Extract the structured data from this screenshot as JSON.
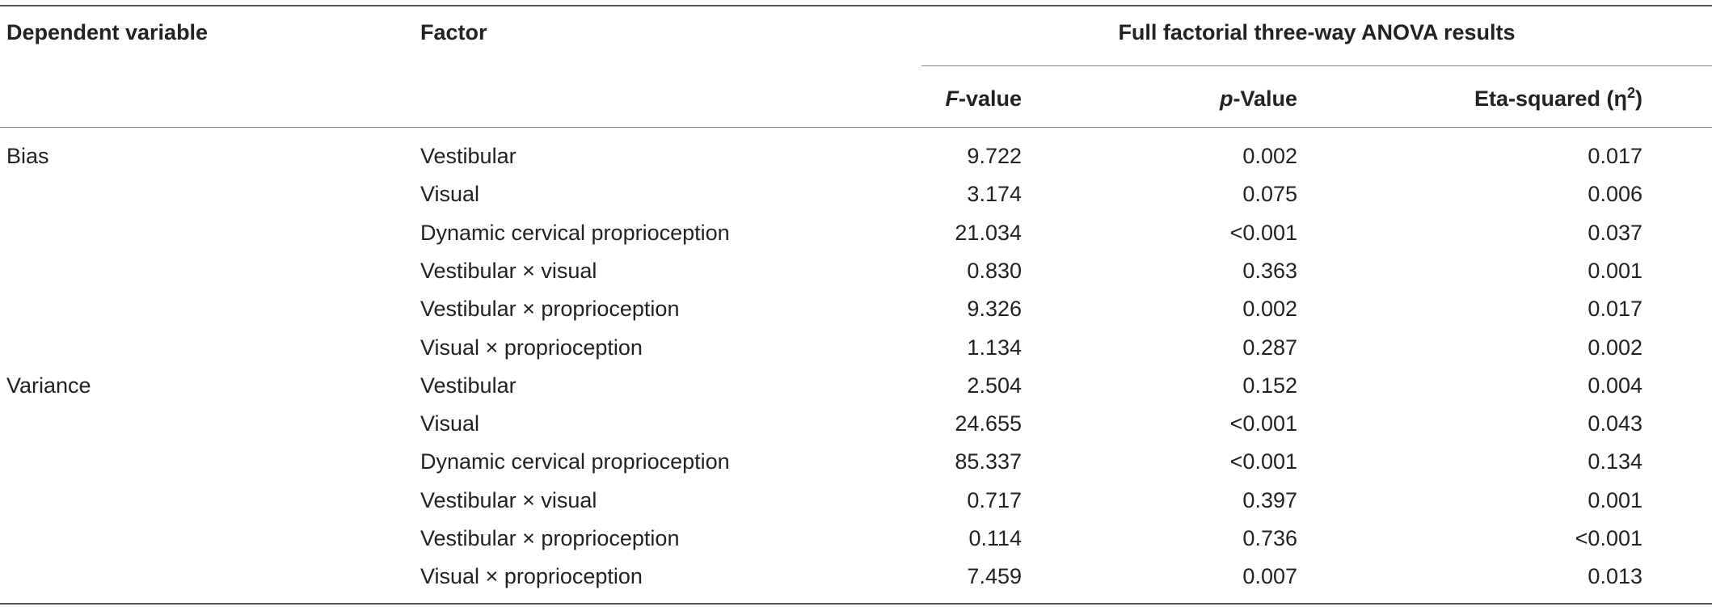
{
  "headers": {
    "dependent_variable": "Dependent variable",
    "factor": "Factor",
    "group_title": "Full factorial three-way ANOVA results",
    "f_value_italic": "F",
    "f_value_rest": "-value",
    "p_value_italic": "p",
    "p_value_rest": "-Value",
    "eta_prefix": "Eta-squared (η",
    "eta_sup": "2",
    "eta_suffix": ")"
  },
  "rows": [
    {
      "dependent": "Bias",
      "factor": "Vestibular",
      "f": "9.722",
      "p": "0.002",
      "eta": "0.017"
    },
    {
      "dependent": "",
      "factor": "Visual",
      "f": "3.174",
      "p": "0.075",
      "eta": "0.006"
    },
    {
      "dependent": "",
      "factor": "Dynamic cervical proprioception",
      "f": "21.034",
      "p": "<0.001",
      "eta": "0.037"
    },
    {
      "dependent": "",
      "factor": "Vestibular × visual",
      "f": "0.830",
      "p": "0.363",
      "eta": "0.001"
    },
    {
      "dependent": "",
      "factor": "Vestibular × proprioception",
      "f": "9.326",
      "p": "0.002",
      "eta": "0.017"
    },
    {
      "dependent": "",
      "factor": "Visual × proprioception",
      "f": "1.134",
      "p": "0.287",
      "eta": "0.002"
    },
    {
      "dependent": "Variance",
      "factor": "Vestibular",
      "f": "2.504",
      "p": "0.152",
      "eta": "0.004"
    },
    {
      "dependent": "",
      "factor": "Visual",
      "f": "24.655",
      "p": "<0.001",
      "eta": "0.043"
    },
    {
      "dependent": "",
      "factor": "Dynamic cervical proprioception",
      "f": "85.337",
      "p": "<0.001",
      "eta": "0.134"
    },
    {
      "dependent": "",
      "factor": "Vestibular × visual",
      "f": "0.717",
      "p": "0.397",
      "eta": "0.001"
    },
    {
      "dependent": "",
      "factor": "Vestibular × proprioception",
      "f": "0.114",
      "p": "0.736",
      "eta": "<0.001"
    },
    {
      "dependent": "",
      "factor": "Visual × proprioception",
      "f": "7.459",
      "p": "0.007",
      "eta": "0.013"
    }
  ]
}
